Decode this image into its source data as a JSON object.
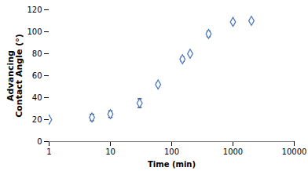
{
  "chart_data": {
    "type": "scatter",
    "x": [
      1,
      5,
      10,
      30,
      60,
      150,
      200,
      400,
      1000,
      2000
    ],
    "values": [
      20,
      22,
      25,
      35,
      52,
      75,
      80,
      98,
      109,
      110
    ],
    "yerr": [
      1,
      3,
      3,
      4,
      1.5,
      2,
      1,
      2.5,
      1,
      1
    ],
    "xlabel": "Time (min)",
    "ylabel": "Advancing\nContact Angle (°)",
    "xlim": [
      1,
      10000
    ],
    "ylim": [
      0,
      120
    ],
    "xticks": [
      1,
      10,
      100,
      1000,
      10000
    ],
    "yticks": [
      0,
      20,
      40,
      60,
      80,
      100,
      120
    ],
    "log": "x",
    "color": "#4472C4",
    "marker": "diamond",
    "grid": false
  }
}
